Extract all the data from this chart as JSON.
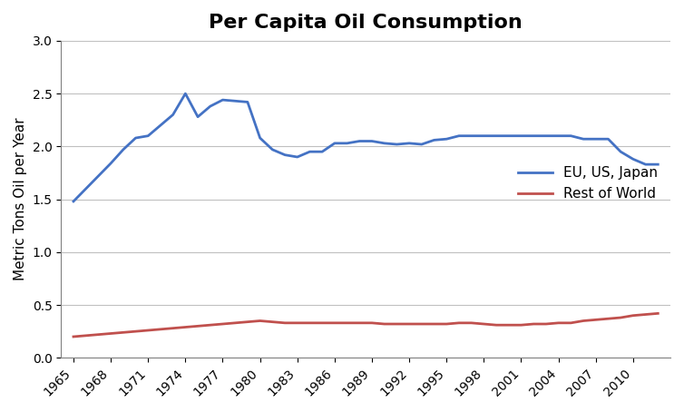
{
  "title": "Per Capita Oil Consumption",
  "ylabel": "Metric Tons Oil per Year",
  "xlim": [
    1964,
    2013
  ],
  "ylim": [
    0,
    3.0
  ],
  "yticks": [
    0.0,
    0.5,
    1.0,
    1.5,
    2.0,
    2.5,
    3.0
  ],
  "xtick_years": [
    1965,
    1968,
    1971,
    1974,
    1977,
    1980,
    1983,
    1986,
    1989,
    1992,
    1995,
    1998,
    2001,
    2004,
    2007,
    2010
  ],
  "eu_us_japan": {
    "label": "EU, US, Japan",
    "color": "#4472C4",
    "years": [
      1965,
      1966,
      1967,
      1968,
      1969,
      1970,
      1971,
      1972,
      1973,
      1974,
      1975,
      1976,
      1977,
      1978,
      1979,
      1980,
      1981,
      1982,
      1983,
      1984,
      1985,
      1986,
      1987,
      1988,
      1989,
      1990,
      1991,
      1992,
      1993,
      1994,
      1995,
      1996,
      1997,
      1998,
      1999,
      2000,
      2001,
      2002,
      2003,
      2004,
      2005,
      2006,
      2007,
      2008,
      2009,
      2010,
      2011,
      2012
    ],
    "values": [
      1.48,
      1.6,
      1.72,
      1.84,
      1.97,
      2.08,
      2.1,
      2.2,
      2.3,
      2.5,
      2.28,
      2.38,
      2.44,
      2.43,
      2.42,
      2.08,
      1.97,
      1.92,
      1.9,
      1.95,
      1.95,
      2.03,
      2.03,
      2.05,
      2.05,
      2.03,
      2.02,
      2.03,
      2.02,
      2.06,
      2.07,
      2.1,
      2.1,
      2.1,
      2.1,
      2.1,
      2.1,
      2.1,
      2.1,
      2.1,
      2.1,
      2.07,
      2.07,
      2.07,
      1.95,
      1.88,
      1.83,
      1.83
    ]
  },
  "rest_of_world": {
    "label": "Rest of World",
    "color": "#C0504D",
    "years": [
      1965,
      1966,
      1967,
      1968,
      1969,
      1970,
      1971,
      1972,
      1973,
      1974,
      1975,
      1976,
      1977,
      1978,
      1979,
      1980,
      1981,
      1982,
      1983,
      1984,
      1985,
      1986,
      1987,
      1988,
      1989,
      1990,
      1991,
      1992,
      1993,
      1994,
      1995,
      1996,
      1997,
      1998,
      1999,
      2000,
      2001,
      2002,
      2003,
      2004,
      2005,
      2006,
      2007,
      2008,
      2009,
      2010,
      2011,
      2012
    ],
    "values": [
      0.2,
      0.21,
      0.22,
      0.23,
      0.24,
      0.25,
      0.26,
      0.27,
      0.28,
      0.29,
      0.3,
      0.31,
      0.32,
      0.33,
      0.34,
      0.35,
      0.34,
      0.33,
      0.33,
      0.33,
      0.33,
      0.33,
      0.33,
      0.33,
      0.33,
      0.32,
      0.32,
      0.32,
      0.32,
      0.32,
      0.32,
      0.33,
      0.33,
      0.32,
      0.31,
      0.31,
      0.31,
      0.32,
      0.32,
      0.33,
      0.33,
      0.35,
      0.36,
      0.37,
      0.38,
      0.4,
      0.41,
      0.42
    ]
  },
  "background_color": "#ffffff",
  "grid_color": "#c0c0c0",
  "title_fontsize": 16,
  "label_fontsize": 11,
  "tick_fontsize": 10,
  "legend_fontsize": 11
}
